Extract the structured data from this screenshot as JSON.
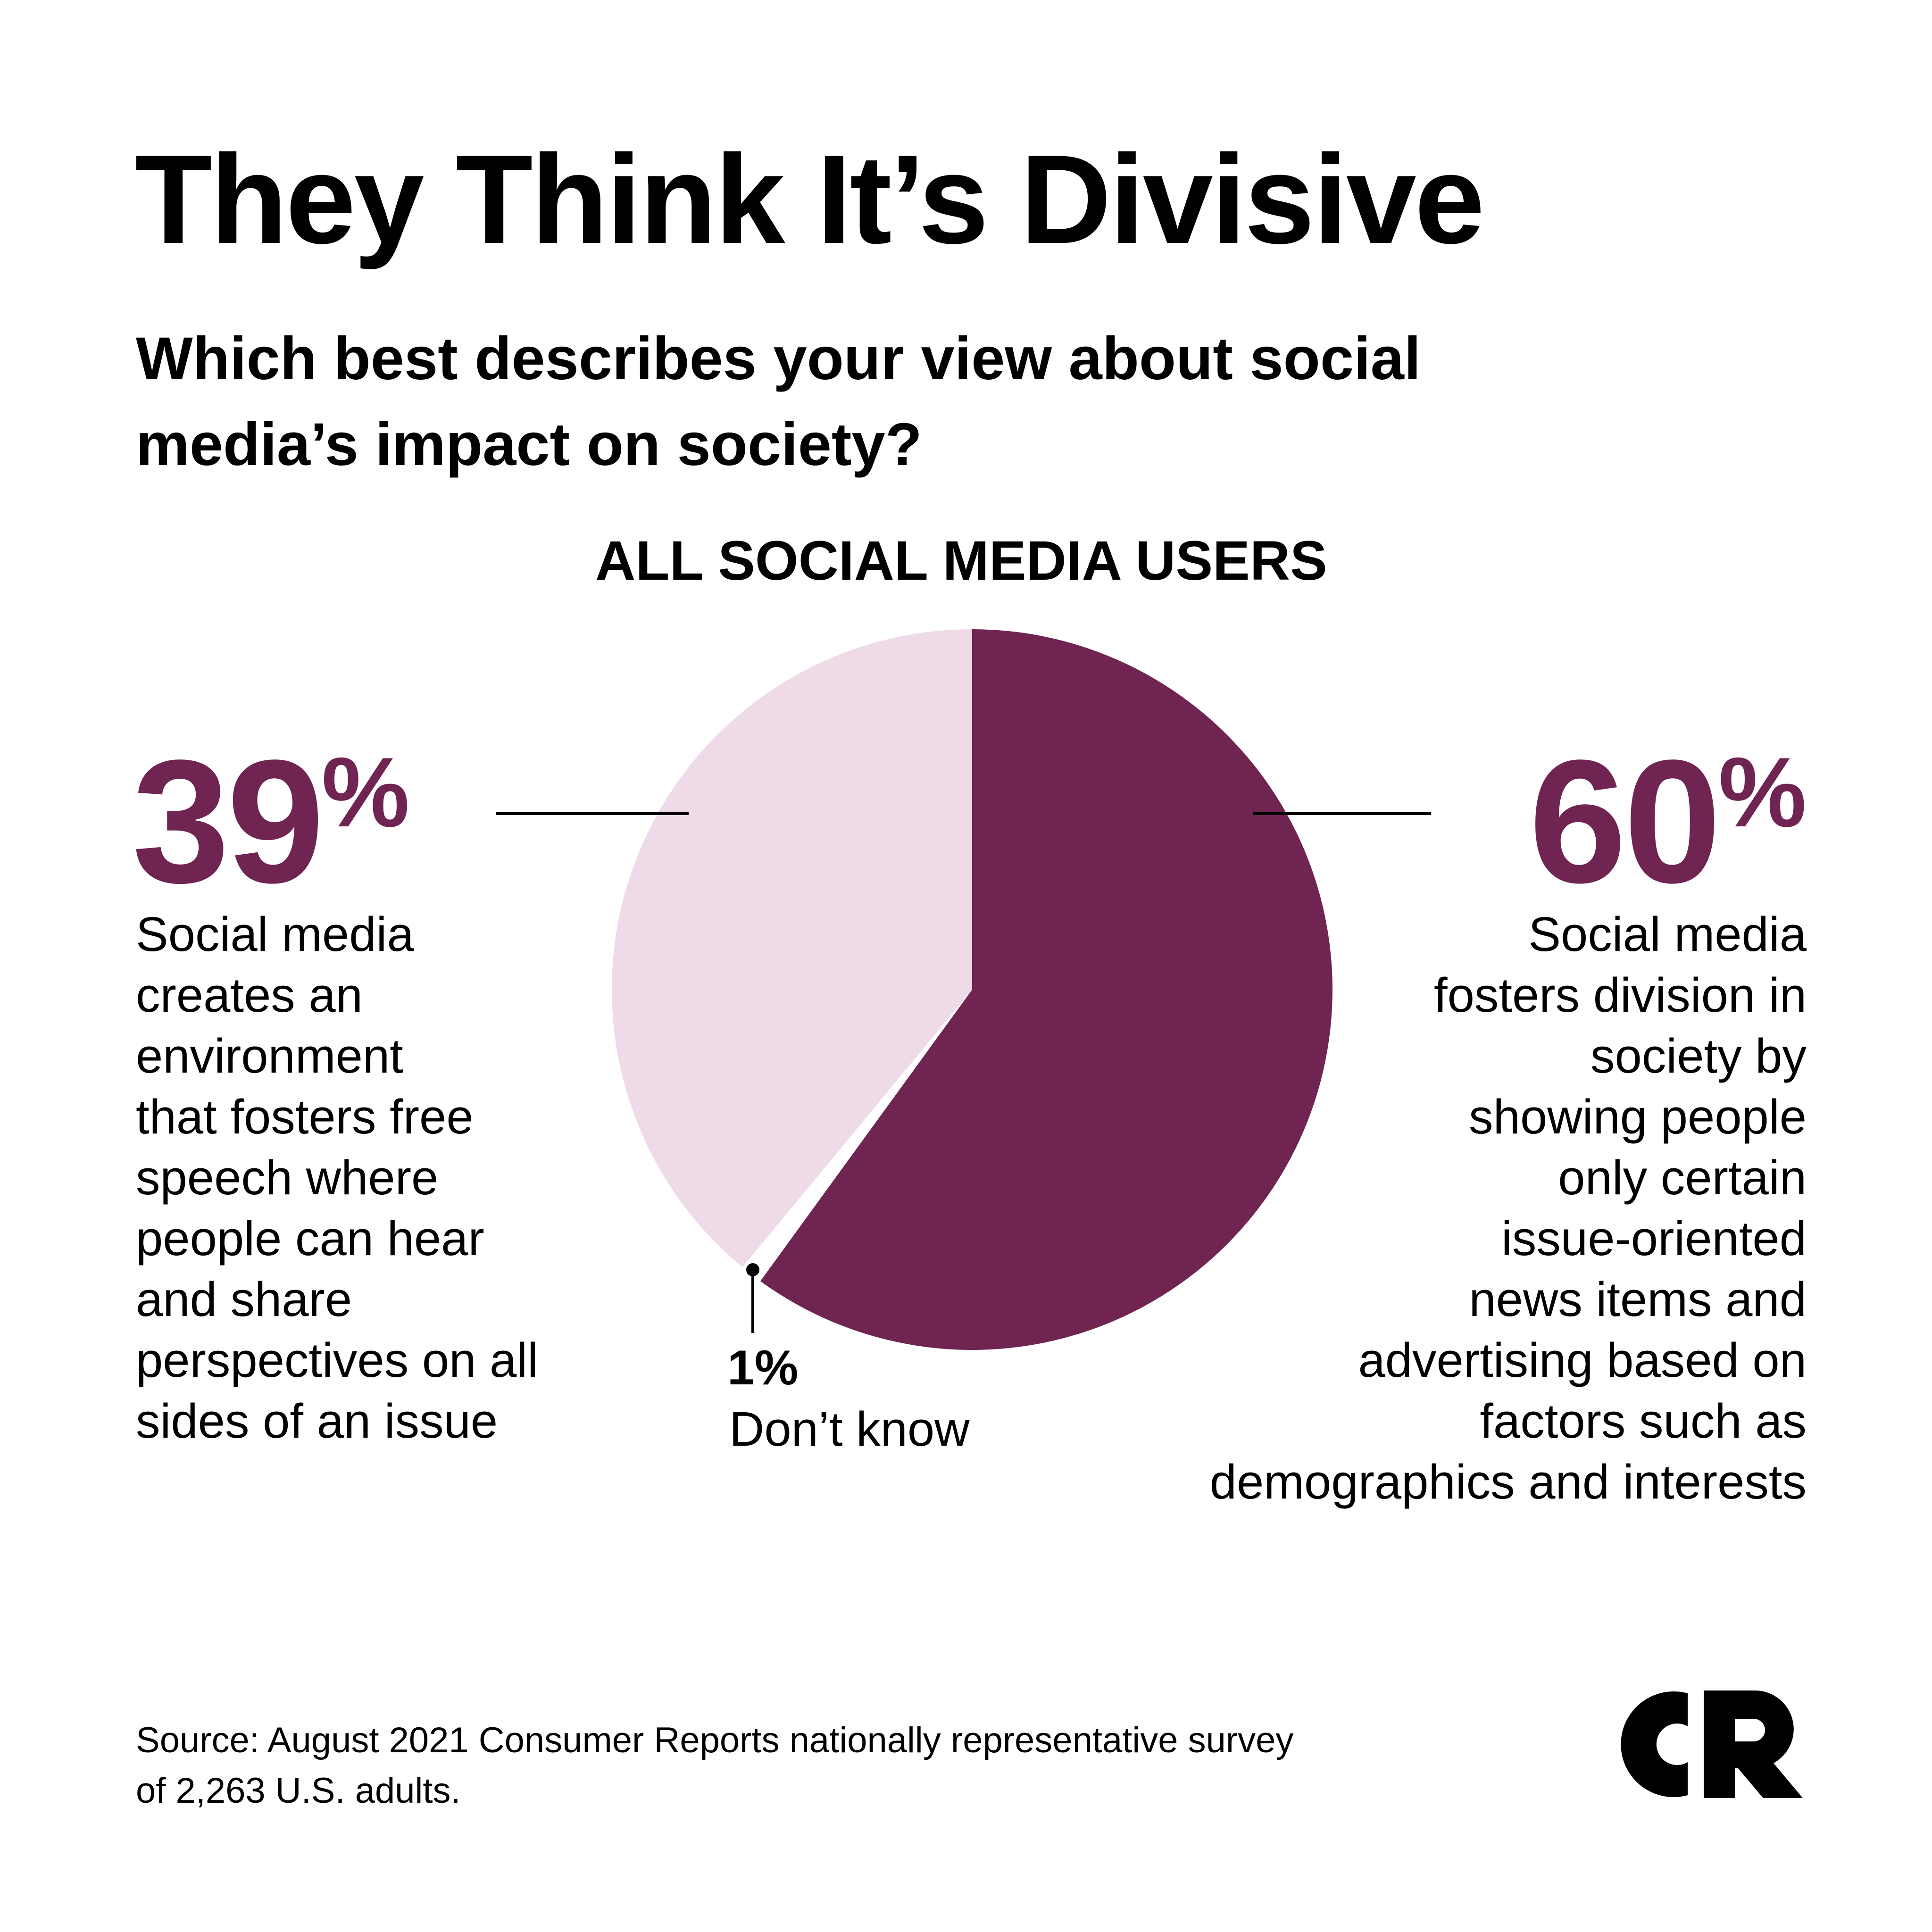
{
  "title": "They Think It’s Divisive",
  "subtitle": "Which best describes your view about social media’s impact on society?",
  "chart_heading": "ALL SOCIAL MEDIA USERS",
  "left_label": {
    "value": "39",
    "unit": "%",
    "description": "Social media\ncreates an\nenvironment\nthat fosters free\nspeech where\npeople can hear\nand share\nperspectives on all\nsides of an issue"
  },
  "right_label": {
    "value": "60",
    "unit": "%",
    "description": "Social media\nfosters division in\nsociety by\nshowing people\nonly certain\nissue-oriented\nnews items and\nadvertising based on\nfactors such as\ndemographics and interests"
  },
  "dont_know_label": {
    "value": "1%",
    "text": "Don’t know"
  },
  "source": "Source: August 2021 Consumer Reports nationally representative survey\nof 2,263 U.S. adults.",
  "logo": "CR",
  "colors": {
    "accent": "#6f2451",
    "light": "#efdbe8",
    "text": "#000000",
    "background": "#ffffff"
  },
  "chart_data": {
    "type": "pie",
    "title": "ALL SOCIAL MEDIA USERS",
    "start": "top",
    "direction": "clockwise",
    "slices": [
      {
        "label": "Social media fosters division in society by showing people only certain issue-oriented news items and advertising based on factors such as demographics and interests",
        "value": 60,
        "color": "#6f2451"
      },
      {
        "label": "Don’t know",
        "value": 1,
        "color": "#ffffff"
      },
      {
        "label": "Social media creates an environment that fosters free speech where people can hear and share perspectives on all sides of an issue",
        "value": 39,
        "color": "#efdbe8"
      }
    ]
  }
}
